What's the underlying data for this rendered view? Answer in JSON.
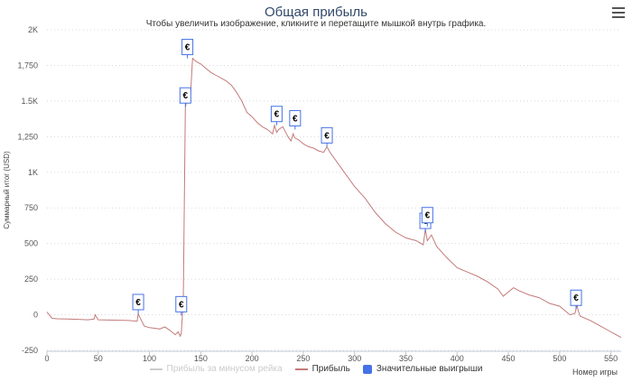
{
  "chart_data": {
    "type": "line",
    "title": "Общая прибыль",
    "subtitle": "Чтобы увеличить изображение, кликните и перетащите мышкой внутрь графика.",
    "xlabel": "Номер игры",
    "ylabel": "Суммарный итог (USD)",
    "xlim": [
      0,
      560
    ],
    "ylim": [
      -250,
      2000
    ],
    "xticks": [
      "0",
      "50",
      "100",
      "150",
      "200",
      "250",
      "300",
      "350",
      "400",
      "450",
      "500",
      "550"
    ],
    "yticks": [
      {
        "v": 2000,
        "label": "2K"
      },
      {
        "v": 1750,
        "label": "1,750"
      },
      {
        "v": 1500,
        "label": "1.5K"
      },
      {
        "v": 1250,
        "label": "1,250"
      },
      {
        "v": 1000,
        "label": "1K"
      },
      {
        "v": 750,
        "label": "750"
      },
      {
        "v": 500,
        "label": "500"
      },
      {
        "v": 250,
        "label": "250"
      },
      {
        "v": 0,
        "label": "0"
      },
      {
        "v": -250,
        "label": "-250"
      }
    ],
    "grid": true,
    "legend_position": "bottom",
    "series": [
      {
        "name": "Прибыль",
        "color": "#c47a7a",
        "x": [
          0,
          5,
          10,
          20,
          30,
          40,
          46,
          47,
          50,
          60,
          70,
          80,
          88,
          89,
          90,
          95,
          100,
          105,
          110,
          115,
          120,
          125,
          128,
          130,
          131,
          133,
          135,
          137,
          139,
          140,
          142,
          145,
          150,
          155,
          160,
          165,
          170,
          175,
          180,
          185,
          190,
          195,
          200,
          205,
          210,
          215,
          220,
          222,
          224,
          226,
          230,
          235,
          238,
          240,
          242,
          245,
          250,
          255,
          260,
          265,
          270,
          273,
          276,
          280,
          290,
          300,
          310,
          320,
          330,
          340,
          350,
          360,
          365,
          367,
          369,
          371,
          375,
          380,
          390,
          400,
          410,
          420,
          430,
          440,
          445,
          450,
          455,
          460,
          470,
          480,
          490,
          500,
          505,
          510,
          515,
          516,
          517,
          518,
          520,
          530,
          540,
          550,
          555,
          560
        ],
        "values": [
          20,
          -25,
          -28,
          -30,
          -32,
          -35,
          -30,
          0,
          -35,
          -37,
          -38,
          -40,
          -45,
          10,
          -10,
          -80,
          -90,
          -95,
          -100,
          -85,
          -110,
          -140,
          -120,
          -150,
          -130,
          100,
          1460,
          1520,
          1500,
          1540,
          1800,
          1780,
          1760,
          1730,
          1700,
          1680,
          1660,
          1640,
          1610,
          1560,
          1500,
          1420,
          1390,
          1350,
          1320,
          1300,
          1270,
          1330,
          1280,
          1300,
          1320,
          1250,
          1220,
          1270,
          1240,
          1230,
          1200,
          1180,
          1170,
          1150,
          1140,
          1180,
          1140,
          1100,
          1000,
          900,
          820,
          720,
          640,
          580,
          540,
          520,
          500,
          490,
          600,
          520,
          560,
          480,
          400,
          330,
          300,
          270,
          230,
          180,
          130,
          160,
          190,
          170,
          140,
          120,
          80,
          60,
          30,
          0,
          10,
          40,
          70,
          30,
          -10,
          -40,
          -80,
          -120,
          -140,
          -160
        ]
      },
      {
        "name": "Прибыль за минусом рейка",
        "color": "#cccccc",
        "hidden": true
      }
    ],
    "markers": {
      "name": "Значительные выигрыши",
      "symbol": "€",
      "color": "#4572e6",
      "points": [
        {
          "x": 89,
          "y": 10
        },
        {
          "x": 131,
          "y": -5
        },
        {
          "x": 135,
          "y": 1460
        },
        {
          "x": 137,
          "y": 1800
        },
        {
          "x": 224,
          "y": 1330
        },
        {
          "x": 242,
          "y": 1300
        },
        {
          "x": 273,
          "y": 1180
        },
        {
          "x": 369,
          "y": 580
        },
        {
          "x": 371,
          "y": 620
        },
        {
          "x": 516,
          "y": 40
        }
      ]
    }
  },
  "legend": [
    {
      "label": "Прибыль за минусом рейка",
      "color": "#cccccc",
      "kind": "line",
      "muted": true
    },
    {
      "label": "Прибыль",
      "color": "#c47a7a",
      "kind": "line",
      "muted": false
    },
    {
      "label": "Значительные выигрыши",
      "color": "#4572e6",
      "kind": "box",
      "muted": false
    }
  ]
}
